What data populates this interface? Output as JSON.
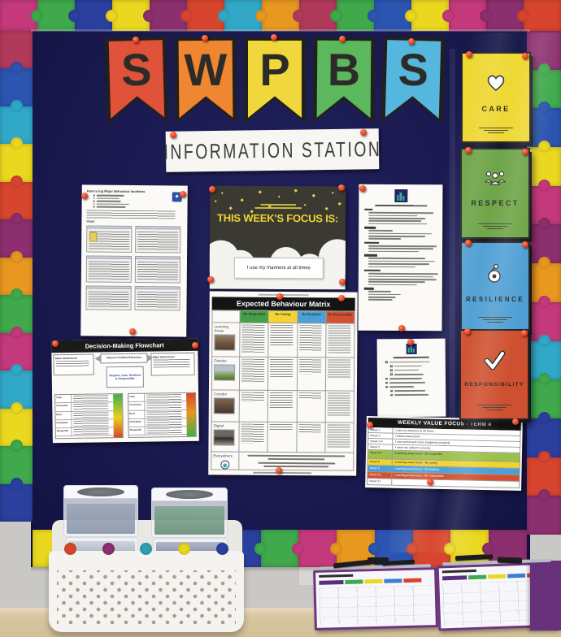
{
  "colors": {
    "board": "#1a1a50",
    "pin": "#e23c1e",
    "banner_flags": [
      "#e0533a",
      "#ef8632",
      "#f0d73c",
      "#5cb85c",
      "#55b7dd"
    ],
    "border_palette": {
      "top": [
        "#c4397b",
        "#3fa94c",
        "#2b3f9e",
        "#ead71f",
        "#8c2f6e",
        "#d8452e",
        "#31a8c8",
        "#e8971f",
        "#b13a5c",
        "#3fa94c",
        "#2b55b0",
        "#ead71f",
        "#c4397b",
        "#8c2f6e",
        "#d8452e"
      ],
      "left": [
        "#b13a5c",
        "#2b55b0",
        "#31a8c8",
        "#ead71f",
        "#d8452e",
        "#8c2f6e",
        "#e8971f",
        "#3fa94c",
        "#c4397b",
        "#31a8c8",
        "#ead71f",
        "#3fa94c",
        "#2b3f9e"
      ],
      "right": [
        "#8c2f6e",
        "#3fa94c",
        "#2b55b0",
        "#ead71f",
        "#c4397b",
        "#8c2f6e",
        "#e8971f",
        "#c4397b",
        "#31a8c8",
        "#3fa94c",
        "#2b3f9e",
        "#d8452e",
        "#8c2f6e"
      ],
      "bottom": [
        "#ead71f",
        "#d8452e",
        "#8c2f6e",
        "#2e9fb4",
        "#ead71f",
        "#2b3f9e",
        "#3fa94c",
        "#c4397b",
        "#e8971f",
        "#2b55b0",
        "#d8452e",
        "#ead71f",
        "#8c2f6e"
      ]
    }
  },
  "banner": {
    "letters": [
      "S",
      "W",
      "P",
      "B",
      "S"
    ]
  },
  "sign": {
    "text": "INFORMATION STATION"
  },
  "how_to": {
    "title": "How to log Major Behaviour Incidents",
    "steps_label": "Steps:"
  },
  "focus": {
    "title": "THIS WEEK'S FOCUS IS:",
    "statement": "I use my manners at all times"
  },
  "flowchart": {
    "title": "Decision-Making Flowchart",
    "left_box": "Minor Behaviours",
    "center_box": "Observe Problem Behaviour",
    "right_box": "Major Behaviours",
    "values_box": "Respect, Care, Resilient & Responsible",
    "row_labels": [
      "Calm",
      "Consistent",
      "Brief",
      "Immediate",
      "Respectful"
    ]
  },
  "matrix": {
    "title": "Expected Behaviour Matrix",
    "columns": [
      {
        "label": "Be Respectful",
        "color": "#43a047"
      },
      {
        "label": "Be Caring",
        "color": "#f3d431"
      },
      {
        "label": "Be Resilient",
        "color": "#4aa0d8"
      },
      {
        "label": "Be Responsible",
        "color": "#d4502e"
      }
    ],
    "rows": [
      "Learning Areas",
      "Outside",
      "Corridor",
      "Digital",
      "Everywhere"
    ]
  },
  "value_cards": [
    {
      "label": "CARE",
      "color": "#eed72f",
      "icon": "heart-icon"
    },
    {
      "label": "RESPECT",
      "color": "#6ba344",
      "icon": "people-icon"
    },
    {
      "label": "RESILIENCE",
      "color": "#4f9fd4",
      "icon": "tumbler-toy-icon"
    },
    {
      "label": "RESPONSIBILITY",
      "color": "#cf5030",
      "icon": "checkmark-icon"
    }
  ],
  "weekly": {
    "title": "WEEKLY VALUE FOCUS - TERM 4",
    "rows": [
      {
        "week": "Week 1",
        "text": "I use my manners at all times",
        "color": "#ffffff"
      },
      {
        "week": "Week 2",
        "text": "I follow instructions",
        "color": "#ffffff"
      },
      {
        "week": "Week 3-4",
        "text": "I use school and class equipment properly",
        "color": "#ffffff"
      },
      {
        "week": "Week 5",
        "text": "I wear my uniform correctly",
        "color": "#ffffff"
      },
      {
        "week": "Week 6-7",
        "text": "Learning areas focus - Be respectful",
        "color": "#9cc14b"
      },
      {
        "week": "Week 8",
        "text": "Learning areas focus - Be caring",
        "color": "#f0d42e"
      },
      {
        "week": "Week 9",
        "text": "Learning areas focus - Be resilient",
        "color": "#4a9fd8"
      },
      {
        "week": "Week 10",
        "text": "Learning areas focus - Be responsible",
        "color": "#d2502f"
      },
      {
        "week": "Week 11",
        "text": "",
        "color": "#ffffff"
      }
    ]
  },
  "clipboards": {
    "stripe_colors": [
      "#5b2d7e",
      "#3fa94c",
      "#ead71f",
      "#3a7fd0",
      "#d8452e"
    ]
  }
}
